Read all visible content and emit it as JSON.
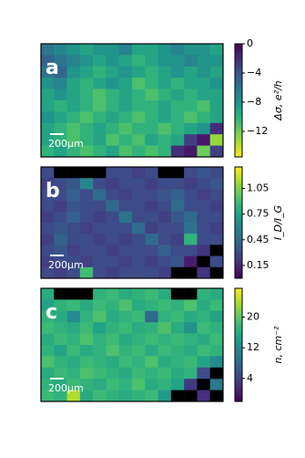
{
  "chart_data": [
    {
      "type": "heatmap",
      "label": "a",
      "scalebar_label": "200μm",
      "cbar_label": "Δσ, e²/h",
      "reversed": true,
      "clim": [
        -15.5,
        0
      ],
      "cbar_ticks": [
        0,
        {
          "value": -4,
          "label": "−4"
        },
        {
          "value": -8,
          "label": "−8"
        },
        {
          "value": -12,
          "label": "−12"
        }
      ],
      "colormap": [
        "#440154",
        "#482878",
        "#3e4989",
        "#31688e",
        "#26828e",
        "#1f9e89",
        "#35b779",
        "#6ece58",
        "#b5de2b",
        "#fde725"
      ],
      "values": [
        [
          -6,
          -7,
          -8,
          -9,
          -8,
          -8,
          -7,
          -9,
          -9,
          -8,
          -7,
          -8,
          -8,
          -9
        ],
        [
          -5,
          -6,
          -7,
          -8,
          -9,
          -8,
          -9,
          -10,
          -9,
          -8,
          -8,
          -7,
          -8,
          -8
        ],
        [
          -6,
          -5,
          -8,
          -9,
          -10,
          -9,
          -8,
          -9,
          -10,
          -9,
          -8,
          -9,
          -8,
          -9
        ],
        [
          -8,
          -7,
          -9,
          -10,
          -9,
          -8,
          -9,
          -11,
          -10,
          -9,
          -10,
          -9,
          -9,
          -8
        ],
        [
          -9,
          -8,
          -9,
          -10,
          -11,
          -10,
          -9,
          -10,
          -11,
          -10,
          -9,
          -10,
          -9,
          -9
        ],
        [
          -9,
          -10,
          -9,
          -10,
          -11,
          -10,
          -9,
          -10,
          -10,
          -9,
          -10,
          -10,
          -11,
          -9
        ],
        [
          -8,
          -9,
          -10,
          -11,
          -10,
          -9,
          -10,
          -11,
          -10,
          -9,
          -10,
          -11,
          -10,
          -9
        ],
        [
          -9,
          -10,
          -11,
          -10,
          -9,
          -10,
          -11,
          -10,
          -10,
          -11,
          -10,
          -9,
          -8,
          -2
        ],
        [
          -9,
          -10,
          -11,
          -10,
          -9,
          -11,
          -10,
          -11,
          -9,
          -10,
          -9,
          -3,
          -1,
          -13
        ],
        [
          -10,
          -9,
          -10,
          -11,
          -10,
          -9,
          -11,
          -10,
          -11,
          -10,
          -2,
          -1,
          -12,
          -3
        ]
      ]
    },
    {
      "type": "heatmap",
      "label": "b",
      "scalebar_label": "200μm",
      "cbar_label": "I_D/I_G",
      "reversed": false,
      "clim": [
        0,
        1.3
      ],
      "cbar_ticks": [
        1.05,
        0.75,
        0.45,
        0.15
      ],
      "colormap": [
        "#440154",
        "#482878",
        "#3e4989",
        "#31688e",
        "#26828e",
        "#1f9e89",
        "#35b779",
        "#6ece58",
        "#b5de2b",
        "#fde725"
      ],
      "values": [
        [
          0.3,
          null,
          null,
          null,
          null,
          0.3,
          0.3,
          0.25,
          0.3,
          null,
          null,
          0.3,
          0.35,
          0.3
        ],
        [
          0.25,
          0.3,
          0.35,
          0.6,
          0.3,
          0.25,
          0.3,
          0.3,
          0.25,
          0.3,
          0.3,
          0.25,
          0.3,
          0.35
        ],
        [
          0.3,
          0.3,
          0.4,
          0.3,
          0.45,
          0.3,
          0.25,
          0.3,
          0.3,
          0.35,
          0.4,
          0.3,
          0.25,
          0.3
        ],
        [
          0.3,
          0.25,
          0.35,
          0.3,
          0.3,
          0.45,
          0.3,
          0.3,
          0.25,
          0.3,
          0.45,
          0.3,
          0.3,
          0.25
        ],
        [
          0.25,
          0.3,
          0.4,
          0.3,
          0.25,
          0.3,
          0.5,
          0.3,
          0.3,
          0.25,
          0.35,
          0.45,
          0.3,
          0.3
        ],
        [
          0.3,
          0.35,
          0.3,
          0.25,
          0.3,
          0.3,
          0.3,
          0.45,
          0.25,
          0.3,
          0.3,
          0.5,
          0.3,
          0.25
        ],
        [
          0.25,
          0.4,
          0.3,
          0.3,
          0.25,
          0.3,
          0.25,
          0.3,
          0.45,
          0.3,
          0.25,
          0.85,
          0.3,
          0.3
        ],
        [
          0.3,
          0.35,
          0.25,
          0.3,
          0.3,
          0.25,
          0.3,
          0.3,
          0.3,
          0.4,
          0.3,
          0.3,
          0.2,
          null
        ],
        [
          0.25,
          0.3,
          0.3,
          0.25,
          0.3,
          0.3,
          0.25,
          0.3,
          0.25,
          0.3,
          0.35,
          0.1,
          null,
          0.3
        ],
        [
          0.3,
          0.25,
          0.3,
          0.9,
          0.3,
          0.25,
          0.3,
          0.3,
          0.3,
          0.25,
          null,
          null,
          0.2,
          null
        ]
      ]
    },
    {
      "type": "heatmap",
      "label": "c",
      "scalebar_label": "200μm",
      "cbar_label": "n, cm⁻²",
      "reversed": false,
      "clim": [
        -2,
        27.5
      ],
      "cbar_ticks": [
        20,
        12,
        4
      ],
      "colormap": [
        "#440154",
        "#482878",
        "#3e4989",
        "#31688e",
        "#26828e",
        "#1f9e89",
        "#35b779",
        "#6ece58",
        "#b5de2b",
        "#fde725"
      ],
      "values": [
        [
          16,
          null,
          null,
          null,
          17,
          18,
          16,
          17,
          18,
          16,
          null,
          null,
          17,
          16
        ],
        [
          15,
          17,
          18,
          16,
          18,
          17,
          19,
          16,
          17,
          18,
          17,
          19,
          16,
          18
        ],
        [
          17,
          16,
          12,
          17,
          19,
          16,
          17,
          18,
          8,
          17,
          18,
          16,
          17,
          15
        ],
        [
          18,
          17,
          16,
          18,
          15,
          17,
          18,
          16,
          17,
          19,
          16,
          13,
          18,
          17
        ],
        [
          16,
          18,
          17,
          19,
          17,
          18,
          16,
          17,
          18,
          17,
          18,
          17,
          16,
          18
        ],
        [
          17,
          15,
          18,
          16,
          17,
          19,
          17,
          18,
          16,
          18,
          17,
          16,
          18,
          17
        ],
        [
          19,
          17,
          16,
          18,
          17,
          16,
          18,
          17,
          19,
          16,
          17,
          18,
          15,
          12
        ],
        [
          16,
          18,
          17,
          19,
          18,
          17,
          16,
          18,
          17,
          18,
          16,
          17,
          5,
          null
        ],
        [
          17,
          16,
          18,
          17,
          16,
          18,
          17,
          19,
          16,
          17,
          15,
          3,
          null,
          10
        ],
        [
          18,
          17,
          24,
          16,
          18,
          17,
          16,
          17,
          18,
          14,
          null,
          null,
          2,
          null
        ]
      ]
    }
  ]
}
